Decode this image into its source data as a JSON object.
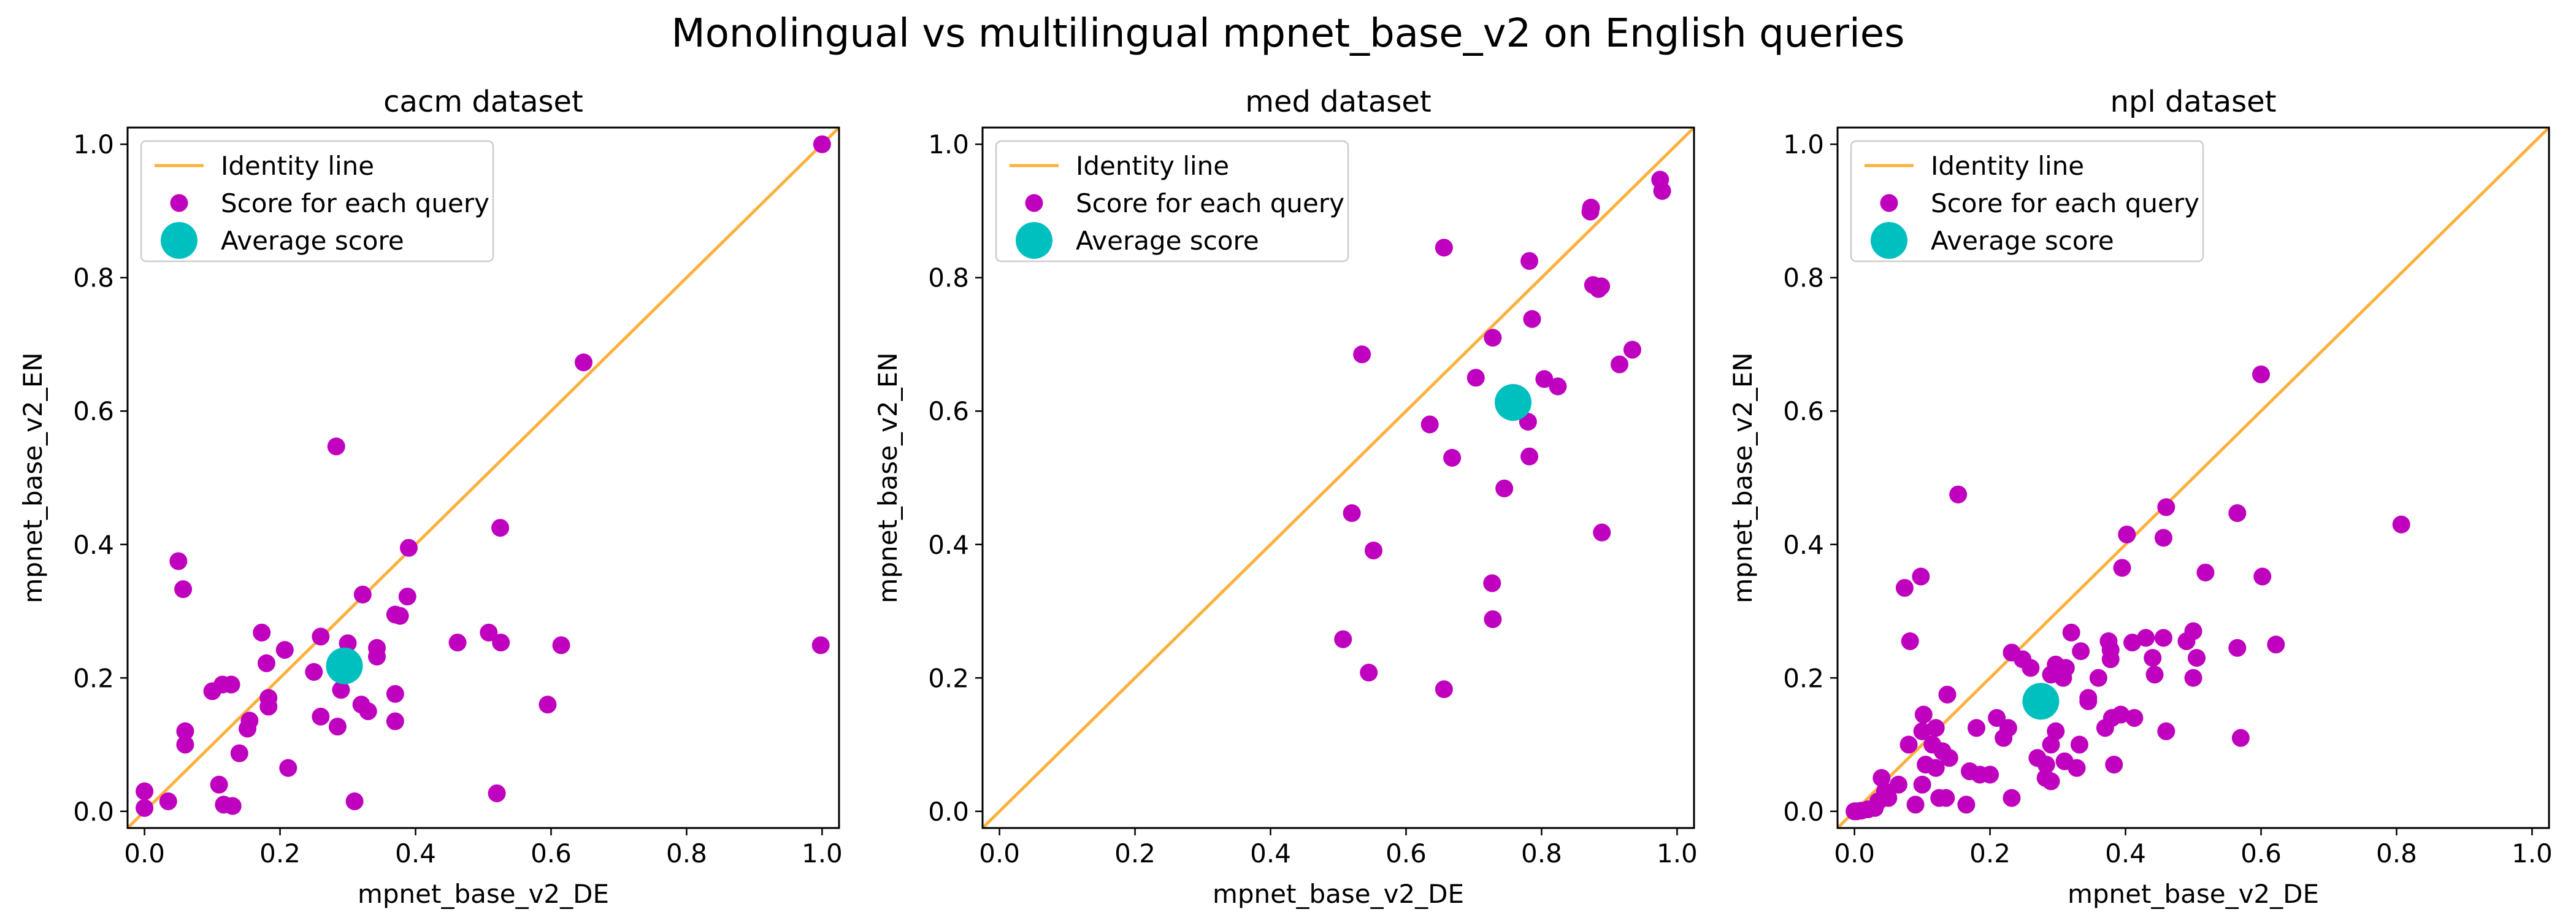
{
  "figure": {
    "title": "Monolingual vs multilingual mpnet_base_v2 on English queries"
  },
  "legend": {
    "identity": "Identity line",
    "scores": "Score for each query",
    "average": "Average score"
  },
  "colors": {
    "identity": "#fbb13c",
    "scores": "#bf00bf",
    "average": "#00bfbf",
    "axes": "#000000"
  },
  "chart_data": [
    {
      "type": "scatter",
      "title": "cacm dataset",
      "xlabel": "mpnet_base_v2_DE",
      "ylabel": "mpnet_base_v2_EN",
      "xlim": [
        -0.025,
        1.025
      ],
      "ylim": [
        -0.025,
        1.025
      ],
      "xticks": [
        "0.0",
        "0.2",
        "0.4",
        "0.6",
        "0.8",
        "1.0"
      ],
      "yticks": [
        "0.0",
        "0.2",
        "0.4",
        "0.6",
        "0.8",
        "1.0"
      ],
      "legend_position": "upper-left",
      "grid": false,
      "average": [
        0.295,
        0.218
      ],
      "points": [
        [
          1.0,
          1.0
        ],
        [
          0.648,
          0.673
        ],
        [
          0.525,
          0.425
        ],
        [
          0.283,
          0.547
        ],
        [
          0.05,
          0.375
        ],
        [
          0.057,
          0.333
        ],
        [
          0.39,
          0.395
        ],
        [
          0.388,
          0.322
        ],
        [
          0.508,
          0.268
        ],
        [
          0.526,
          0.253
        ],
        [
          0.615,
          0.249
        ],
        [
          0.998,
          0.249
        ],
        [
          0.595,
          0.16
        ],
        [
          0.52,
          0.027
        ],
        [
          0.462,
          0.253
        ],
        [
          0.37,
          0.295
        ],
        [
          0.377,
          0.293
        ],
        [
          0.3,
          0.252
        ],
        [
          0.343,
          0.245
        ],
        [
          0.343,
          0.232
        ],
        [
          0.173,
          0.268
        ],
        [
          0.25,
          0.209
        ],
        [
          0.18,
          0.222
        ],
        [
          0.207,
          0.242
        ],
        [
          0.26,
          0.262
        ],
        [
          0.322,
          0.325
        ],
        [
          0.1,
          0.18
        ],
        [
          0.115,
          0.19
        ],
        [
          0.128,
          0.19
        ],
        [
          0.155,
          0.136
        ],
        [
          0.152,
          0.124
        ],
        [
          0.183,
          0.157
        ],
        [
          0.183,
          0.17
        ],
        [
          0.26,
          0.142
        ],
        [
          0.285,
          0.127
        ],
        [
          0.29,
          0.182
        ],
        [
          0.32,
          0.16
        ],
        [
          0.33,
          0.15
        ],
        [
          0.37,
          0.176
        ],
        [
          0.37,
          0.135
        ],
        [
          0.06,
          0.12
        ],
        [
          0.06,
          0.1
        ],
        [
          0.14,
          0.087
        ],
        [
          0.212,
          0.065
        ],
        [
          0.11,
          0.04
        ],
        [
          0.117,
          0.01
        ],
        [
          0.13,
          0.008
        ],
        [
          0.31,
          0.015
        ],
        [
          0.035,
          0.015
        ],
        [
          0.0,
          0.03
        ],
        [
          0.0,
          0.005
        ]
      ]
    },
    {
      "type": "scatter",
      "title": "med dataset",
      "xlabel": "mpnet_base_v2_DE",
      "ylabel": "mpnet_base_v2_EN",
      "xlim": [
        -0.025,
        1.025
      ],
      "ylim": [
        -0.025,
        1.025
      ],
      "xticks": [
        "0.0",
        "0.2",
        "0.4",
        "0.6",
        "0.8",
        "1.0"
      ],
      "yticks": [
        "0.0",
        "0.2",
        "0.4",
        "0.6",
        "0.8",
        "1.0"
      ],
      "legend_position": "upper-left",
      "grid": false,
      "average": [
        0.758,
        0.613
      ],
      "points": [
        [
          0.975,
          0.947
        ],
        [
          0.978,
          0.93
        ],
        [
          0.873,
          0.905
        ],
        [
          0.872,
          0.899
        ],
        [
          0.656,
          0.845
        ],
        [
          0.782,
          0.825
        ],
        [
          0.876,
          0.789
        ],
        [
          0.884,
          0.783
        ],
        [
          0.888,
          0.787
        ],
        [
          0.786,
          0.738
        ],
        [
          0.934,
          0.692
        ],
        [
          0.728,
          0.71
        ],
        [
          0.535,
          0.685
        ],
        [
          0.915,
          0.67
        ],
        [
          0.804,
          0.648
        ],
        [
          0.824,
          0.637
        ],
        [
          0.703,
          0.65
        ],
        [
          0.635,
          0.58
        ],
        [
          0.78,
          0.584
        ],
        [
          0.668,
          0.53
        ],
        [
          0.782,
          0.532
        ],
        [
          0.745,
          0.484
        ],
        [
          0.52,
          0.447
        ],
        [
          0.552,
          0.391
        ],
        [
          0.889,
          0.418
        ],
        [
          0.727,
          0.342
        ],
        [
          0.728,
          0.288
        ],
        [
          0.507,
          0.258
        ],
        [
          0.545,
          0.208
        ],
        [
          0.656,
          0.183
        ]
      ]
    },
    {
      "type": "scatter",
      "title": "npl dataset",
      "xlabel": "mpnet_base_v2_DE",
      "ylabel": "mpnet_base_v2_EN",
      "xlim": [
        -0.025,
        1.025
      ],
      "ylim": [
        -0.025,
        1.025
      ],
      "xticks": [
        "0.0",
        "0.2",
        "0.4",
        "0.6",
        "0.8",
        "1.0"
      ],
      "yticks": [
        "0.0",
        "0.2",
        "0.4",
        "0.6",
        "0.8",
        "1.0"
      ],
      "legend_position": "upper-left",
      "grid": false,
      "average": [
        0.275,
        0.165
      ],
      "points": [
        [
          0.6,
          0.655
        ],
        [
          0.153,
          0.475
        ],
        [
          0.46,
          0.456
        ],
        [
          0.807,
          0.43
        ],
        [
          0.565,
          0.447
        ],
        [
          0.402,
          0.415
        ],
        [
          0.456,
          0.41
        ],
        [
          0.395,
          0.365
        ],
        [
          0.518,
          0.358
        ],
        [
          0.602,
          0.352
        ],
        [
          0.098,
          0.352
        ],
        [
          0.074,
          0.335
        ],
        [
          0.082,
          0.255
        ],
        [
          0.32,
          0.268
        ],
        [
          0.41,
          0.253
        ],
        [
          0.43,
          0.26
        ],
        [
          0.456,
          0.26
        ],
        [
          0.5,
          0.27
        ],
        [
          0.49,
          0.255
        ],
        [
          0.565,
          0.245
        ],
        [
          0.622,
          0.25
        ],
        [
          0.375,
          0.255
        ],
        [
          0.378,
          0.242
        ],
        [
          0.378,
          0.228
        ],
        [
          0.334,
          0.24
        ],
        [
          0.297,
          0.22
        ],
        [
          0.29,
          0.205
        ],
        [
          0.232,
          0.238
        ],
        [
          0.248,
          0.228
        ],
        [
          0.26,
          0.215
        ],
        [
          0.312,
          0.215
        ],
        [
          0.308,
          0.2
        ],
        [
          0.36,
          0.2
        ],
        [
          0.44,
          0.23
        ],
        [
          0.443,
          0.205
        ],
        [
          0.5,
          0.2
        ],
        [
          0.505,
          0.23
        ],
        [
          0.393,
          0.145
        ],
        [
          0.38,
          0.14
        ],
        [
          0.413,
          0.14
        ],
        [
          0.37,
          0.125
        ],
        [
          0.345,
          0.165
        ],
        [
          0.345,
          0.17
        ],
        [
          0.332,
          0.1
        ],
        [
          0.297,
          0.12
        ],
        [
          0.29,
          0.1
        ],
        [
          0.21,
          0.14
        ],
        [
          0.227,
          0.125
        ],
        [
          0.22,
          0.11
        ],
        [
          0.27,
          0.08
        ],
        [
          0.283,
          0.07
        ],
        [
          0.31,
          0.075
        ],
        [
          0.328,
          0.065
        ],
        [
          0.46,
          0.12
        ],
        [
          0.57,
          0.11
        ],
        [
          0.383,
          0.07
        ],
        [
          0.282,
          0.05
        ],
        [
          0.29,
          0.045
        ],
        [
          0.232,
          0.02
        ],
        [
          0.137,
          0.175
        ],
        [
          0.102,
          0.145
        ],
        [
          0.12,
          0.125
        ],
        [
          0.115,
          0.1
        ],
        [
          0.1,
          0.12
        ],
        [
          0.14,
          0.08
        ],
        [
          0.17,
          0.06
        ],
        [
          0.2,
          0.055
        ],
        [
          0.185,
          0.055
        ],
        [
          0.18,
          0.125
        ],
        [
          0.13,
          0.09
        ],
        [
          0.105,
          0.07
        ],
        [
          0.12,
          0.065
        ],
        [
          0.08,
          0.1
        ],
        [
          0.065,
          0.04
        ],
        [
          0.1,
          0.04
        ],
        [
          0.09,
          0.01
        ],
        [
          0.125,
          0.02
        ],
        [
          0.135,
          0.02
        ],
        [
          0.165,
          0.01
        ],
        [
          0.04,
          0.05
        ],
        [
          0.045,
          0.03
        ],
        [
          0.05,
          0.02
        ],
        [
          0.035,
          0.015
        ],
        [
          0.03,
          0.005
        ],
        [
          0.02,
          0.003
        ],
        [
          0.01,
          0.001
        ],
        [
          0.003,
          0.0
        ],
        [
          0.0,
          0.0
        ]
      ]
    }
  ]
}
